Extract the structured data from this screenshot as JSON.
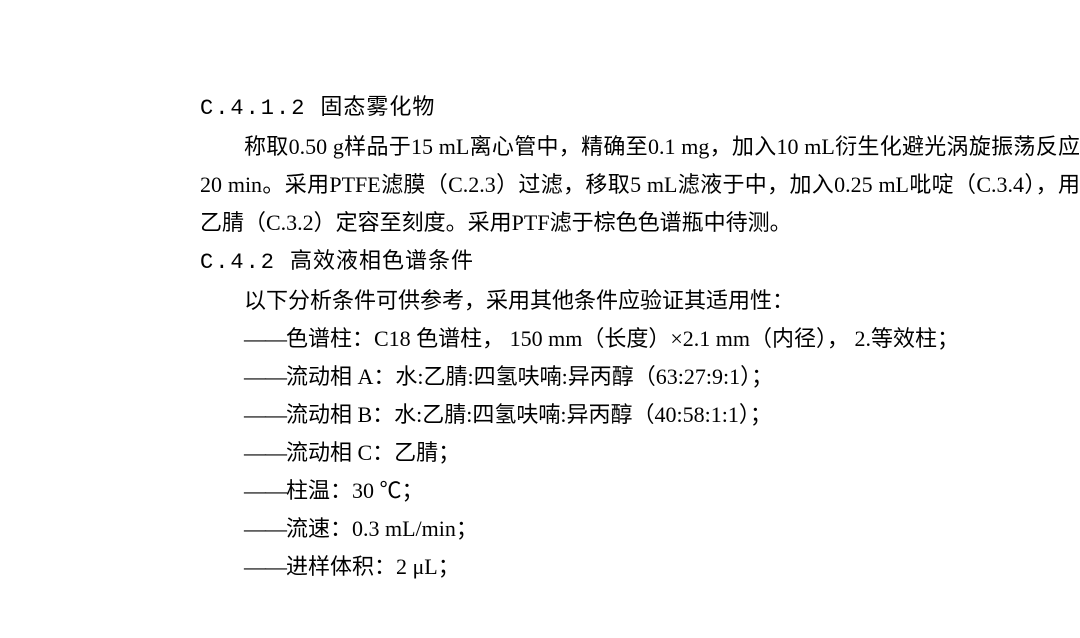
{
  "section1": {
    "number": "C.4.1.2",
    "title": "固态雾化物",
    "paragraph": "称取0.50 g样品于15 mL离心管中，精确至0.1 mg，加入10 mL衍生化避光涡旋振荡反应20 min。采用PTFE滤膜（C.2.3）过滤，移取5 mL滤液于中，加入0.25 mL吡啶（C.3.4），用乙腈（C.3.2）定容至刻度。采用PTF滤于棕色色谱瓶中待测。"
  },
  "section2": {
    "number": "C.4.2",
    "title": "高效液相色谱条件",
    "intro": "以下分析条件可供参考，采用其他条件应验证其适用性：",
    "items": [
      "色谱柱：C18 色谱柱， 150 mm（长度）×2.1 mm（内径）， 2.等效柱；",
      "流动相 A：水:乙腈:四氢呋喃:异丙醇（63:27:9:1）；",
      "流动相 B：水:乙腈:四氢呋喃:异丙醇（40:58:1:1）；",
      "流动相 C：乙腈；",
      "柱温：30 ℃；",
      "流速：0.3 mL/min；",
      "进样体积：2 μL；"
    ]
  },
  "dash_prefix": "——"
}
